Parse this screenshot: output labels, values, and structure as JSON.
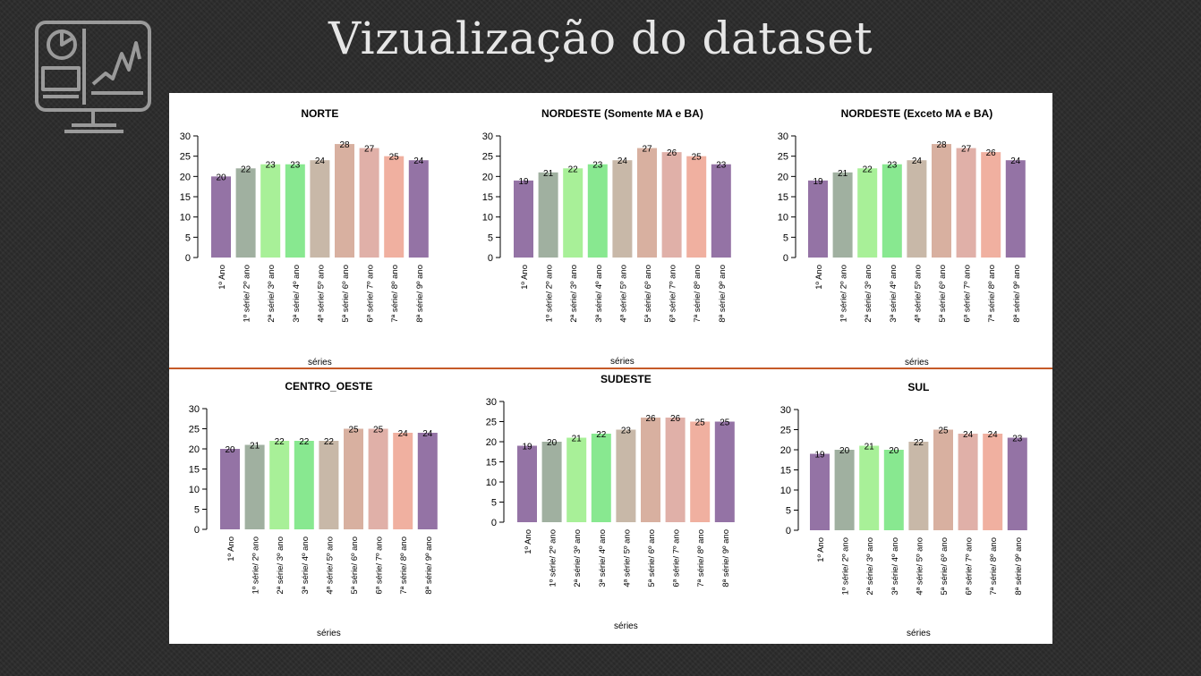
{
  "slide": {
    "title": "Vizualização do dataset",
    "logo_icon": "dashboard-monitor-icon"
  },
  "colors": {
    "background": "#2b2b2b",
    "divider": "#c55a28",
    "bars": [
      "#9473a5",
      "#a0b0a0",
      "#a8f098",
      "#88e890",
      "#c8b8a8",
      "#d8b0a0",
      "#e0b0a8",
      "#f0b0a0",
      "#9473a5"
    ]
  },
  "chart_data": [
    {
      "type": "bar",
      "title": "NORTE",
      "xlabel": "séries",
      "categories": [
        "1º Ano",
        "1º série/ 2º ano",
        "2ª série/ 3º ano",
        "3ª série/ 4º ano",
        "4ª série/ 5º ano",
        "5ª série/ 6º ano",
        "6ª série/ 7º ano",
        "7ª série/ 8º ano",
        "8ª série/ 9º ano"
      ],
      "values": [
        20,
        22,
        23,
        23,
        24,
        28,
        27,
        25,
        24
      ],
      "ylim": [
        0,
        30
      ],
      "yticks": [
        "0",
        "5",
        "10",
        "15",
        "20",
        "25",
        "30"
      ]
    },
    {
      "type": "bar",
      "title": "NORDESTE (Somente MA e BA)",
      "xlabel": "séries",
      "categories": [
        "1º Ano",
        "1º série/ 2º ano",
        "2ª série/ 3º ano",
        "3ª série/ 4º ano",
        "4ª série/ 5º ano",
        "5ª série/ 6º ano",
        "6ª série/ 7º ano",
        "7ª série/ 8º ano",
        "8ª série/ 9º ano"
      ],
      "values": [
        19,
        21,
        22,
        23,
        24,
        27,
        26,
        25,
        23
      ],
      "ylim": [
        0,
        30
      ],
      "yticks": [
        "0",
        "5",
        "10",
        "15",
        "20",
        "25",
        "30"
      ]
    },
    {
      "type": "bar",
      "title": "NORDESTE (Exceto MA e BA)",
      "xlabel": "séries",
      "categories": [
        "1º Ano",
        "1º série/ 2º ano",
        "2ª série/ 3º ano",
        "3ª série/ 4º ano",
        "4ª série/ 5º ano",
        "5ª série/ 6º ano",
        "6ª série/ 7º ano",
        "7ª série/ 8º ano",
        "8ª série/ 9º ano"
      ],
      "values": [
        19,
        21,
        22,
        23,
        24,
        28,
        27,
        26,
        24
      ],
      "ylim": [
        0,
        30
      ],
      "yticks": [
        "0",
        "5",
        "10",
        "15",
        "20",
        "25",
        "30"
      ]
    },
    {
      "type": "bar",
      "title": "CENTRO_OESTE",
      "xlabel": "séries",
      "categories": [
        "1º Ano",
        "1º série/ 2º ano",
        "2ª série/ 3º ano",
        "3ª série/ 4º ano",
        "4ª série/ 5º ano",
        "5ª série/ 6º ano",
        "6ª série/ 7º ano",
        "7ª série/ 8º ano",
        "8ª série/ 9º ano"
      ],
      "values": [
        20,
        21,
        22,
        22,
        22,
        25,
        25,
        24,
        24
      ],
      "ylim": [
        0,
        30
      ],
      "yticks": [
        "0",
        "5",
        "10",
        "15",
        "20",
        "25",
        "30"
      ]
    },
    {
      "type": "bar",
      "title": "SUDESTE",
      "xlabel": "séries",
      "categories": [
        "1º Ano",
        "1º série/ 2º ano",
        "2ª série/ 3º ano",
        "3ª série/ 4º ano",
        "4ª série/ 5º ano",
        "5ª série/ 6º ano",
        "6ª série/ 7º ano",
        "7ª série/ 8º ano",
        "8ª série/ 9º ano"
      ],
      "values": [
        19,
        20,
        21,
        22,
        23,
        26,
        26,
        25,
        25
      ],
      "ylim": [
        0,
        30
      ],
      "yticks": [
        "0",
        "5",
        "10",
        "15",
        "20",
        "25",
        "30"
      ]
    },
    {
      "type": "bar",
      "title": "SUL",
      "xlabel": "séries",
      "categories": [
        "1º Ano",
        "1º série/ 2º ano",
        "2ª série/ 3º ano",
        "3ª série/ 4º ano",
        "4ª série/ 5º ano",
        "5ª série/ 6º ano",
        "6ª série/ 7º ano",
        "7ª série/ 8º ano",
        "8ª série/ 9º ano"
      ],
      "values": [
        19,
        20,
        21,
        20,
        22,
        25,
        24,
        24,
        23
      ],
      "ylim": [
        0,
        30
      ],
      "yticks": [
        "0",
        "5",
        "10",
        "15",
        "20",
        "25",
        "30"
      ]
    }
  ]
}
